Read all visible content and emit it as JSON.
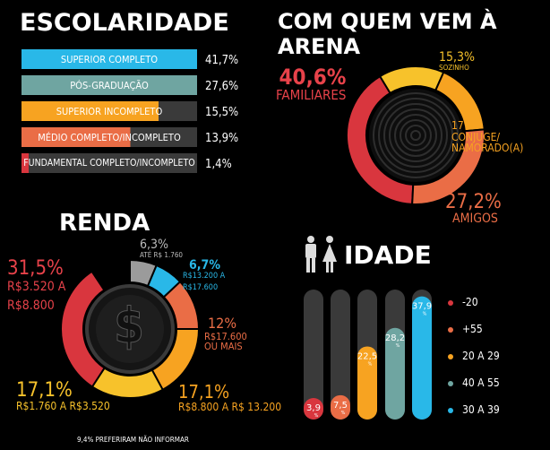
{
  "escolaridade": {
    "title": "ESCOLARIDADE",
    "items": [
      {
        "label": "SUPERIOR COMPLETO",
        "value": "41,7%",
        "color": "#29b8e8"
      },
      {
        "label": "PÓS-GRADUAÇÃO",
        "value": "27,6%",
        "color": "#6fa5a1"
      },
      {
        "label": "SUPERIOR INCOMPLETO",
        "value": "15,5%",
        "color": "#f7a321"
      },
      {
        "label": "MÉDIO COMPLETO/INCOMPLETO",
        "value": "13,9%",
        "color": "#ea6d46"
      },
      {
        "label": "FUNDAMENTAL COMPLETO/INCOMPLETO",
        "value": "1,4%",
        "color": "#d9363e"
      }
    ]
  },
  "arena": {
    "title": "COM QUEM VEM À ARENA",
    "familiares": {
      "value": "40,6%",
      "label": "FAMILIARES"
    },
    "sozinho": {
      "value": "15,3%",
      "label": "SOZINHO"
    },
    "conjuge": {
      "value": "17%",
      "label1": "CONJUGE/",
      "label2": "NAMORADO(A)"
    },
    "amigos": {
      "value": "27,2%",
      "label": "AMIGOS"
    }
  },
  "renda": {
    "title": "RENDA",
    "s1": {
      "value": "31,5%",
      "l1": "R$3.520 A",
      "l2": "R$8.800"
    },
    "s2": {
      "value": "6,3%",
      "l1": "ATÉ R$ 1.760"
    },
    "s3": {
      "value": "6,7%",
      "l1": "R$13.200 A",
      "l2": "R$17.600"
    },
    "s4": {
      "value": "12%",
      "l1": "R$17.600",
      "l2": "OU MAIS"
    },
    "s5": {
      "value": "17,1%",
      "l1": "R$8.800 A R$ 13.200"
    },
    "s6": {
      "value": "17,1%",
      "l1": "R$1.760 A R$3.520"
    },
    "note": "9,4% PREFERIRAM NÃO INFORMAR",
    "center_symbol": "$"
  },
  "idade": {
    "title": "IDADE",
    "legend": [
      "-20",
      "+55",
      "20 A 29",
      "40 A 55",
      "30 A 39"
    ],
    "bar_values": [
      "3,9",
      "7,5",
      "22,5",
      "28,2",
      "37,9"
    ],
    "bar_unit": "%"
  },
  "chart_data": [
    {
      "type": "bar",
      "title": "ESCOLARIDADE",
      "categories": [
        "SUPERIOR COMPLETO",
        "PÓS-GRADUAÇÃO",
        "SUPERIOR INCOMPLETO",
        "MÉDIO COMPLETO/INCOMPLETO",
        "FUNDAMENTAL COMPLETO/INCOMPLETO"
      ],
      "values": [
        41.7,
        27.6,
        15.5,
        13.9,
        1.4
      ]
    },
    {
      "type": "pie",
      "title": "COM QUEM VEM À ARENA",
      "categories": [
        "FAMILIARES",
        "SOZINHO",
        "CONJUGE/NAMORADO(A)",
        "AMIGOS"
      ],
      "values": [
        40.6,
        15.3,
        17,
        27.2
      ],
      "colors": [
        "#d9363e",
        "#f7c22b",
        "#f7a321",
        "#ea6d46"
      ]
    },
    {
      "type": "pie",
      "title": "RENDA",
      "categories": [
        "ATÉ R$ 1.760",
        "R$13.200 A R$17.600",
        "R$17.600 OU MAIS",
        "R$8.800 A R$ 13.200",
        "R$1.760 A R$3.520",
        "R$3.520 A R$8.800"
      ],
      "values": [
        6.3,
        6.7,
        12,
        17.1,
        17.1,
        31.5
      ],
      "colors": [
        "#9b9b9b",
        "#29b8e8",
        "#ea6d46",
        "#f7a321",
        "#f7c22b",
        "#d9363e"
      ]
    },
    {
      "type": "bar",
      "title": "IDADE",
      "categories": [
        "-20",
        "+55",
        "20 A 29",
        "40 A 55",
        "30 A 39"
      ],
      "values": [
        3.9,
        7.5,
        22.5,
        28.2,
        37.9
      ],
      "colors": [
        "#d9363e",
        "#ea6d46",
        "#f7a321",
        "#6fa5a1",
        "#29b8e8"
      ]
    }
  ]
}
